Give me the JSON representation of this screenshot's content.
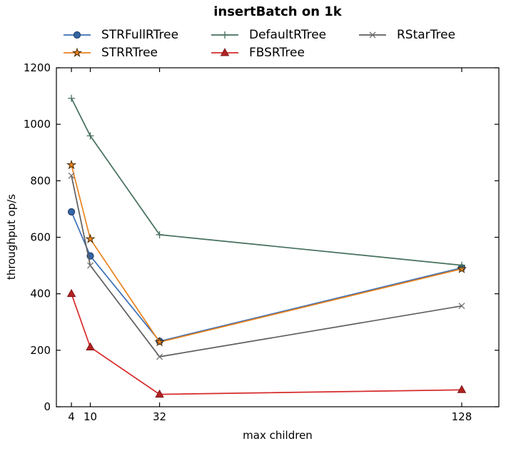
{
  "title": "insertBatch on 1k",
  "chart_data": {
    "type": "line",
    "title": "insertBatch on 1k",
    "xlabel": "max children",
    "ylabel": "throughput op/s",
    "x": [
      4,
      10,
      32,
      128
    ],
    "x_tick_labels": [
      "4",
      "10",
      "32",
      "128"
    ],
    "y_tick_values": [
      0,
      200,
      400,
      600,
      800,
      1000,
      1200
    ],
    "y_tick_labels": [
      "0",
      "200",
      "400",
      "600",
      "800",
      "1000",
      "1200"
    ],
    "xlim": [
      -0.78,
      139.8
    ],
    "ylim": [
      0,
      1200
    ],
    "grid": false,
    "legend_position": "top-outside, 3 columns",
    "series": [
      {
        "name": "STRFullRTree",
        "marker": "circle",
        "color": "#3a6fb7",
        "marker_fill": "#3465a4",
        "marker_edge": "#1f3a63",
        "values": [
          690,
          534,
          232,
          492
        ]
      },
      {
        "name": "STRRTree",
        "marker": "star",
        "color": "#e8821e",
        "marker_fill": "#e8821e",
        "marker_edge": "#4a2e08",
        "values": [
          856,
          594,
          229,
          488
        ]
      },
      {
        "name": "DefaultRTree",
        "marker": "plus",
        "color": "#45705c",
        "marker_fill": "none",
        "marker_edge": "#45705c",
        "values": [
          1092,
          959,
          609,
          501
        ]
      },
      {
        "name": "FBSRTree",
        "marker": "triangle",
        "color": "#d62b2b",
        "marker_fill": "#b22222",
        "marker_edge": "#7c1418",
        "values": [
          400,
          211,
          44,
          60
        ]
      },
      {
        "name": "RStarTree",
        "marker": "x",
        "color": "#5e5e5e",
        "marker_fill": "none",
        "marker_edge": "#6e6e6e",
        "values": [
          818,
          500,
          177,
          357
        ]
      }
    ],
    "legend_column_order": [
      [
        "STRFullRTree",
        "STRRTree"
      ],
      [
        "DefaultRTree",
        "FBSRTree"
      ],
      [
        "RStarTree"
      ]
    ]
  }
}
